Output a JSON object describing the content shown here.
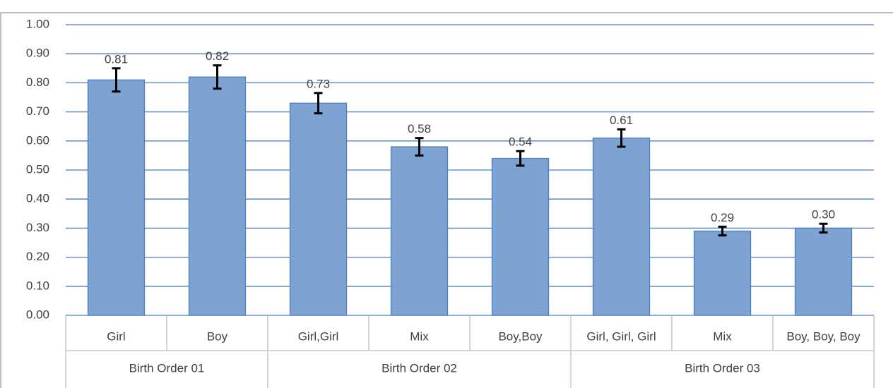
{
  "chart_data": {
    "type": "bar",
    "categories": [
      "Girl",
      "Boy",
      "Girl,Girl",
      "Mix",
      "Boy,Boy",
      "Girl, Girl, Girl",
      "Mix",
      "Boy, Boy, Boy"
    ],
    "group_labels": [
      "Birth Order 01",
      "Birth Order 02",
      "Birth Order 03"
    ],
    "group_sizes": [
      2,
      3,
      3
    ],
    "values": [
      0.81,
      0.82,
      0.73,
      0.58,
      0.54,
      0.61,
      0.29,
      0.3
    ],
    "value_labels": [
      "0.81",
      "0.82",
      "0.73",
      "0.58",
      "0.54",
      "0.61",
      "0.29",
      "0.30"
    ],
    "errors": [
      0.04,
      0.04,
      0.035,
      0.03,
      0.025,
      0.03,
      0.015,
      0.015
    ],
    "color": "#7ea3d3",
    "edge_color": "#4f7ec0",
    "error_color": "#000000",
    "grid": true,
    "grid_color": "#4a7ebb",
    "ylim": [
      0,
      1
    ],
    "yticks": [
      {
        "value": 0,
        "label": "0.00"
      },
      {
        "value": 0.1,
        "label": "0.10"
      },
      {
        "value": 0.2,
        "label": "0.20"
      },
      {
        "value": 0.3,
        "label": "0.30"
      },
      {
        "value": 0.4,
        "label": "0.40"
      },
      {
        "value": 0.5,
        "label": "0.50"
      },
      {
        "value": 0.6,
        "label": "0.60"
      },
      {
        "value": 0.7,
        "label": "0.70"
      },
      {
        "value": 0.8,
        "label": "0.80"
      },
      {
        "value": 0.9,
        "label": "0.90"
      },
      {
        "value": 1,
        "label": "1.00"
      }
    ]
  }
}
